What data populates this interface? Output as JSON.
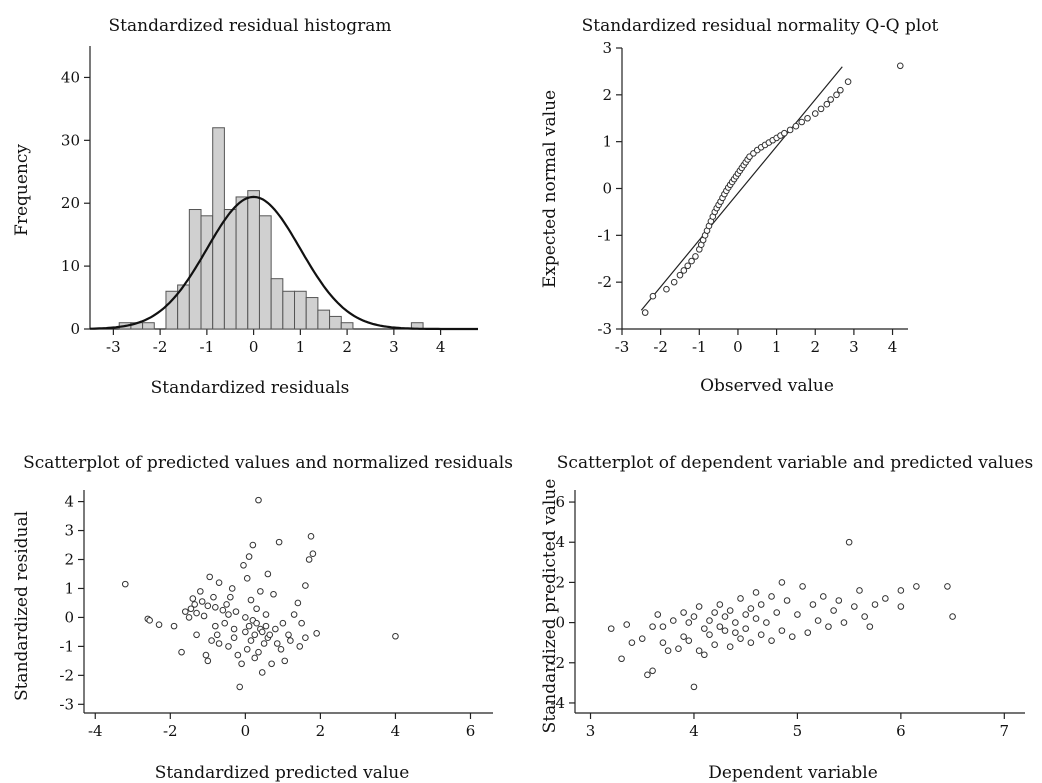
{
  "chart_data": [
    {
      "type": "bar",
      "title": "Standardized residual histogram",
      "xlabel": "Standardized residuals",
      "ylabel": "Frequency",
      "xlim": [
        -3.5,
        4.8
      ],
      "ylim": [
        0,
        45
      ],
      "xticks": [
        -3,
        -2,
        -1,
        0,
        1,
        2,
        3,
        4
      ],
      "yticks": [
        0,
        10,
        20,
        30,
        40
      ],
      "bin_width": 0.25,
      "bins": [
        {
          "x": -2.75,
          "count": 1
        },
        {
          "x": -2.5,
          "count": 1
        },
        {
          "x": -2.25,
          "count": 1
        },
        {
          "x": -1.75,
          "count": 6
        },
        {
          "x": -1.5,
          "count": 7
        },
        {
          "x": -1.25,
          "count": 19
        },
        {
          "x": -1.0,
          "count": 18
        },
        {
          "x": -0.75,
          "count": 32
        },
        {
          "x": -0.5,
          "count": 19
        },
        {
          "x": -0.25,
          "count": 21
        },
        {
          "x": 0.0,
          "count": 22
        },
        {
          "x": 0.25,
          "count": 18
        },
        {
          "x": 0.5,
          "count": 8
        },
        {
          "x": 0.75,
          "count": 6
        },
        {
          "x": 1.0,
          "count": 6
        },
        {
          "x": 1.25,
          "count": 5
        },
        {
          "x": 1.5,
          "count": 3
        },
        {
          "x": 1.75,
          "count": 2
        },
        {
          "x": 2.0,
          "count": 1
        },
        {
          "x": 3.5,
          "count": 1
        }
      ],
      "normal_curve": {
        "mean": 0,
        "sd": 1,
        "peak": 21
      }
    },
    {
      "type": "scatter",
      "title": "Standardized residual normality Q-Q plot",
      "xlabel": "Observed value",
      "ylabel": "Expected normal value",
      "xlim": [
        -3,
        4.4
      ],
      "ylim": [
        -3,
        3
      ],
      "xticks": [
        -3,
        -2,
        -1,
        0,
        1,
        2,
        3,
        4
      ],
      "yticks": [
        -3,
        -2,
        -1,
        0,
        1,
        2,
        3
      ],
      "reference_line": [
        [
          -2.5,
          -2.6
        ],
        [
          2.7,
          2.6
        ]
      ],
      "points": [
        [
          -2.4,
          -2.65
        ],
        [
          -2.2,
          -2.3
        ],
        [
          -1.85,
          -2.15
        ],
        [
          -1.65,
          -2.0
        ],
        [
          -1.5,
          -1.85
        ],
        [
          -1.4,
          -1.75
        ],
        [
          -1.3,
          -1.65
        ],
        [
          -1.2,
          -1.55
        ],
        [
          -1.1,
          -1.45
        ],
        [
          -1.0,
          -1.3
        ],
        [
          -0.95,
          -1.2
        ],
        [
          -0.9,
          -1.1
        ],
        [
          -0.85,
          -1.0
        ],
        [
          -0.8,
          -0.9
        ],
        [
          -0.75,
          -0.8
        ],
        [
          -0.7,
          -0.7
        ],
        [
          -0.65,
          -0.6
        ],
        [
          -0.6,
          -0.5
        ],
        [
          -0.55,
          -0.42
        ],
        [
          -0.5,
          -0.35
        ],
        [
          -0.45,
          -0.28
        ],
        [
          -0.4,
          -0.2
        ],
        [
          -0.35,
          -0.12
        ],
        [
          -0.3,
          -0.05
        ],
        [
          -0.25,
          0.02
        ],
        [
          -0.2,
          0.08
        ],
        [
          -0.15,
          0.14
        ],
        [
          -0.1,
          0.2
        ],
        [
          -0.05,
          0.26
        ],
        [
          0.0,
          0.32
        ],
        [
          0.05,
          0.38
        ],
        [
          0.1,
          0.44
        ],
        [
          0.15,
          0.5
        ],
        [
          0.2,
          0.56
        ],
        [
          0.25,
          0.62
        ],
        [
          0.3,
          0.68
        ],
        [
          0.4,
          0.75
        ],
        [
          0.5,
          0.82
        ],
        [
          0.6,
          0.88
        ],
        [
          0.7,
          0.93
        ],
        [
          0.8,
          0.98
        ],
        [
          0.9,
          1.03
        ],
        [
          1.0,
          1.08
        ],
        [
          1.1,
          1.13
        ],
        [
          1.2,
          1.18
        ],
        [
          1.35,
          1.25
        ],
        [
          1.5,
          1.33
        ],
        [
          1.65,
          1.42
        ],
        [
          1.8,
          1.5
        ],
        [
          2.0,
          1.6
        ],
        [
          2.15,
          1.7
        ],
        [
          2.3,
          1.8
        ],
        [
          2.4,
          1.9
        ],
        [
          2.55,
          2.0
        ],
        [
          2.65,
          2.1
        ],
        [
          2.85,
          2.28
        ],
        [
          4.2,
          2.62
        ]
      ]
    },
    {
      "type": "scatter",
      "title": "Scatterplot of predicted values and normalized residuals",
      "xlabel": "Standardized predicted value",
      "ylabel": "Standardized residual",
      "xlim": [
        -4.3,
        6.6
      ],
      "ylim": [
        -3.3,
        4.4
      ],
      "xticks": [
        -4,
        -2,
        0,
        2,
        4,
        6
      ],
      "yticks": [
        -3,
        -2,
        -1,
        0,
        1,
        2,
        3,
        4
      ],
      "points": [
        [
          -3.2,
          1.15
        ],
        [
          -2.6,
          -0.05
        ],
        [
          -2.55,
          -0.1
        ],
        [
          -2.3,
          -0.25
        ],
        [
          -1.9,
          -0.3
        ],
        [
          -1.7,
          -1.2
        ],
        [
          -1.6,
          0.2
        ],
        [
          -1.5,
          0.0
        ],
        [
          -1.45,
          0.3
        ],
        [
          -1.4,
          0.65
        ],
        [
          -1.35,
          0.45
        ],
        [
          -1.3,
          0.15
        ],
        [
          -1.3,
          -0.6
        ],
        [
          -1.2,
          0.9
        ],
        [
          -1.15,
          0.55
        ],
        [
          -1.1,
          0.05
        ],
        [
          -1.05,
          -1.3
        ],
        [
          -1.0,
          -1.5
        ],
        [
          -1.0,
          0.4
        ],
        [
          -0.95,
          1.4
        ],
        [
          -0.9,
          -0.8
        ],
        [
          -0.85,
          0.7
        ],
        [
          -0.8,
          -0.3
        ],
        [
          -0.8,
          0.35
        ],
        [
          -0.75,
          -0.6
        ],
        [
          -0.7,
          -0.9
        ],
        [
          -0.7,
          1.2
        ],
        [
          -0.6,
          0.25
        ],
        [
          -0.55,
          -0.2
        ],
        [
          -0.5,
          0.45
        ],
        [
          -0.45,
          0.1
        ],
        [
          -0.45,
          -1.0
        ],
        [
          -0.4,
          0.7
        ],
        [
          -0.35,
          1.0
        ],
        [
          -0.3,
          -0.4
        ],
        [
          -0.3,
          -0.7
        ],
        [
          -0.25,
          0.2
        ],
        [
          -0.2,
          -1.3
        ],
        [
          -0.15,
          -2.4
        ],
        [
          -0.1,
          -1.6
        ],
        [
          -0.05,
          1.8
        ],
        [
          0.0,
          0.0
        ],
        [
          0.0,
          -0.5
        ],
        [
          0.05,
          -1.1
        ],
        [
          0.05,
          1.35
        ],
        [
          0.1,
          2.1
        ],
        [
          0.1,
          -0.3
        ],
        [
          0.15,
          0.6
        ],
        [
          0.15,
          -0.8
        ],
        [
          0.2,
          -0.1
        ],
        [
          0.2,
          2.5
        ],
        [
          0.25,
          -1.4
        ],
        [
          0.25,
          -0.6
        ],
        [
          0.3,
          0.3
        ],
        [
          0.3,
          -0.2
        ],
        [
          0.35,
          4.05
        ],
        [
          0.35,
          -1.2
        ],
        [
          0.4,
          -0.4
        ],
        [
          0.4,
          0.9
        ],
        [
          0.45,
          -0.5
        ],
        [
          0.45,
          -1.9
        ],
        [
          0.5,
          -0.9
        ],
        [
          0.55,
          0.1
        ],
        [
          0.55,
          -0.3
        ],
        [
          0.6,
          1.5
        ],
        [
          0.6,
          -0.7
        ],
        [
          0.65,
          -0.6
        ],
        [
          0.7,
          -1.6
        ],
        [
          0.75,
          0.8
        ],
        [
          0.8,
          -0.4
        ],
        [
          0.85,
          -0.9
        ],
        [
          0.9,
          2.6
        ],
        [
          0.95,
          -1.1
        ],
        [
          1.0,
          -0.2
        ],
        [
          1.05,
          -1.5
        ],
        [
          1.15,
          -0.6
        ],
        [
          1.2,
          -0.8
        ],
        [
          1.3,
          0.1
        ],
        [
          1.4,
          0.5
        ],
        [
          1.45,
          -1.0
        ],
        [
          1.5,
          -0.2
        ],
        [
          1.6,
          1.1
        ],
        [
          1.6,
          -0.7
        ],
        [
          1.7,
          2.0
        ],
        [
          1.75,
          2.8
        ],
        [
          1.8,
          2.2
        ],
        [
          1.9,
          -0.55
        ],
        [
          4.0,
          -0.65
        ]
      ]
    },
    {
      "type": "scatter",
      "title": "Scatterplot of dependent variable and predicted values",
      "xlabel": "Dependent variable",
      "ylabel": "Standardized predicted value",
      "xlim": [
        2.85,
        7.2
      ],
      "ylim": [
        -4.5,
        6.6
      ],
      "xticks": [
        3,
        4,
        5,
        6,
        7
      ],
      "yticks": [
        -4,
        -2,
        0,
        2,
        4,
        6
      ],
      "points": [
        [
          3.2,
          -0.3
        ],
        [
          3.3,
          -1.8
        ],
        [
          3.35,
          -0.1
        ],
        [
          3.4,
          -1.0
        ],
        [
          3.5,
          -0.8
        ],
        [
          3.55,
          -2.6
        ],
        [
          3.6,
          -2.4
        ],
        [
          3.6,
          -0.2
        ],
        [
          3.65,
          0.4
        ],
        [
          3.7,
          -1.0
        ],
        [
          3.7,
          -0.2
        ],
        [
          3.75,
          -1.4
        ],
        [
          3.8,
          0.1
        ],
        [
          3.85,
          -1.3
        ],
        [
          3.9,
          0.5
        ],
        [
          3.9,
          -0.7
        ],
        [
          3.95,
          0.0
        ],
        [
          3.95,
          -0.9
        ],
        [
          4.0,
          -3.2
        ],
        [
          4.0,
          0.3
        ],
        [
          4.05,
          -1.4
        ],
        [
          4.05,
          0.8
        ],
        [
          4.1,
          -0.3
        ],
        [
          4.1,
          -1.6
        ],
        [
          4.15,
          0.1
        ],
        [
          4.15,
          -0.6
        ],
        [
          4.2,
          0.5
        ],
        [
          4.2,
          -1.1
        ],
        [
          4.25,
          -0.2
        ],
        [
          4.25,
          0.9
        ],
        [
          4.3,
          -0.4
        ],
        [
          4.3,
          0.3
        ],
        [
          4.35,
          -1.2
        ],
        [
          4.35,
          0.6
        ],
        [
          4.4,
          -0.5
        ],
        [
          4.4,
          0.0
        ],
        [
          4.45,
          1.2
        ],
        [
          4.45,
          -0.8
        ],
        [
          4.5,
          0.4
        ],
        [
          4.5,
          -0.3
        ],
        [
          4.55,
          0.7
        ],
        [
          4.55,
          -1.0
        ],
        [
          4.6,
          0.2
        ],
        [
          4.6,
          1.5
        ],
        [
          4.65,
          -0.6
        ],
        [
          4.65,
          0.9
        ],
        [
          4.7,
          0.0
        ],
        [
          4.75,
          -0.9
        ],
        [
          4.75,
          1.3
        ],
        [
          4.8,
          0.5
        ],
        [
          4.85,
          -0.4
        ],
        [
          4.85,
          2.0
        ],
        [
          4.9,
          1.1
        ],
        [
          4.95,
          -0.7
        ],
        [
          5.0,
          0.4
        ],
        [
          5.05,
          1.8
        ],
        [
          5.1,
          -0.5
        ],
        [
          5.15,
          0.9
        ],
        [
          5.2,
          0.1
        ],
        [
          5.25,
          1.3
        ],
        [
          5.3,
          -0.2
        ],
        [
          5.35,
          0.6
        ],
        [
          5.4,
          1.1
        ],
        [
          5.45,
          0.0
        ],
        [
          5.5,
          4.0
        ],
        [
          5.55,
          0.8
        ],
        [
          5.6,
          1.6
        ],
        [
          5.65,
          0.3
        ],
        [
          5.7,
          -0.2
        ],
        [
          5.75,
          0.9
        ],
        [
          5.85,
          1.2
        ],
        [
          6.0,
          0.8
        ],
        [
          6.0,
          1.6
        ],
        [
          6.15,
          1.8
        ],
        [
          6.45,
          1.8
        ],
        [
          6.5,
          0.3
        ]
      ]
    }
  ]
}
